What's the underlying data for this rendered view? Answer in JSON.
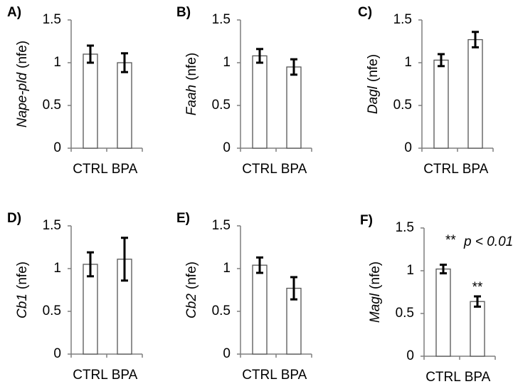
{
  "chart_data": [
    {
      "type": "bar",
      "panel": "A)",
      "ylabel": {
        "gene": "Nape-pld",
        "unit": "(nfe)"
      },
      "categories": [
        "CTRL",
        "BPA"
      ],
      "values": [
        1.1,
        1.0
      ],
      "errors": [
        0.1,
        0.11
      ],
      "color": "#ffffff",
      "ylim": [
        0,
        1.5
      ],
      "yticks": [
        0,
        0.5,
        1,
        1.5
      ]
    },
    {
      "type": "bar",
      "panel": "B)",
      "ylabel": {
        "gene": "Faah",
        "unit": "(nfe)"
      },
      "categories": [
        "CTRL",
        "BPA"
      ],
      "values": [
        1.08,
        0.95
      ],
      "errors": [
        0.08,
        0.09
      ],
      "color": "#ffffff",
      "ylim": [
        0,
        1.5
      ],
      "yticks": [
        0,
        0.5,
        1,
        1.5
      ]
    },
    {
      "type": "bar",
      "panel": "C)",
      "ylabel": {
        "gene": "Dagl",
        "unit": "(nfe)"
      },
      "categories": [
        "CTRL",
        "BPA"
      ],
      "values": [
        1.03,
        1.27
      ],
      "errors": [
        0.07,
        0.09
      ],
      "color": "#ffffff",
      "ylim": [
        0,
        1.5
      ],
      "yticks": [
        0,
        0.5,
        1,
        1.5
      ]
    },
    {
      "type": "bar",
      "panel": "D)",
      "ylabel": {
        "gene": "Cb1",
        "unit": "(nfe)"
      },
      "categories": [
        "CTRL",
        "BPA"
      ],
      "values": [
        1.05,
        1.11
      ],
      "errors": [
        0.14,
        0.25
      ],
      "color": "#ffffff",
      "ylim": [
        0,
        1.5
      ],
      "yticks": [
        0,
        0.5,
        1,
        1.5
      ]
    },
    {
      "type": "bar",
      "panel": "E)",
      "ylabel": {
        "gene": "Cb2",
        "unit": "(nfe)"
      },
      "categories": [
        "CTRL",
        "BPA"
      ],
      "values": [
        1.04,
        0.77
      ],
      "errors": [
        0.09,
        0.13
      ],
      "color": "#ffffff",
      "ylim": [
        0,
        1.5
      ],
      "yticks": [
        0,
        0.5,
        1,
        1.5
      ]
    },
    {
      "type": "bar",
      "panel": "F)",
      "ylabel": {
        "gene": "Magl",
        "unit": "(nfe)"
      },
      "categories": [
        "CTRL",
        "BPA"
      ],
      "values": [
        1.02,
        0.64
      ],
      "errors": [
        0.05,
        0.06
      ],
      "color": "#ffffff",
      "ylim": [
        0,
        1.5
      ],
      "yticks": [
        0,
        0.5,
        1,
        1.5
      ],
      "significance": [
        null,
        "**"
      ],
      "note": {
        "mark": "**",
        "text": "p < 0.01"
      }
    }
  ]
}
